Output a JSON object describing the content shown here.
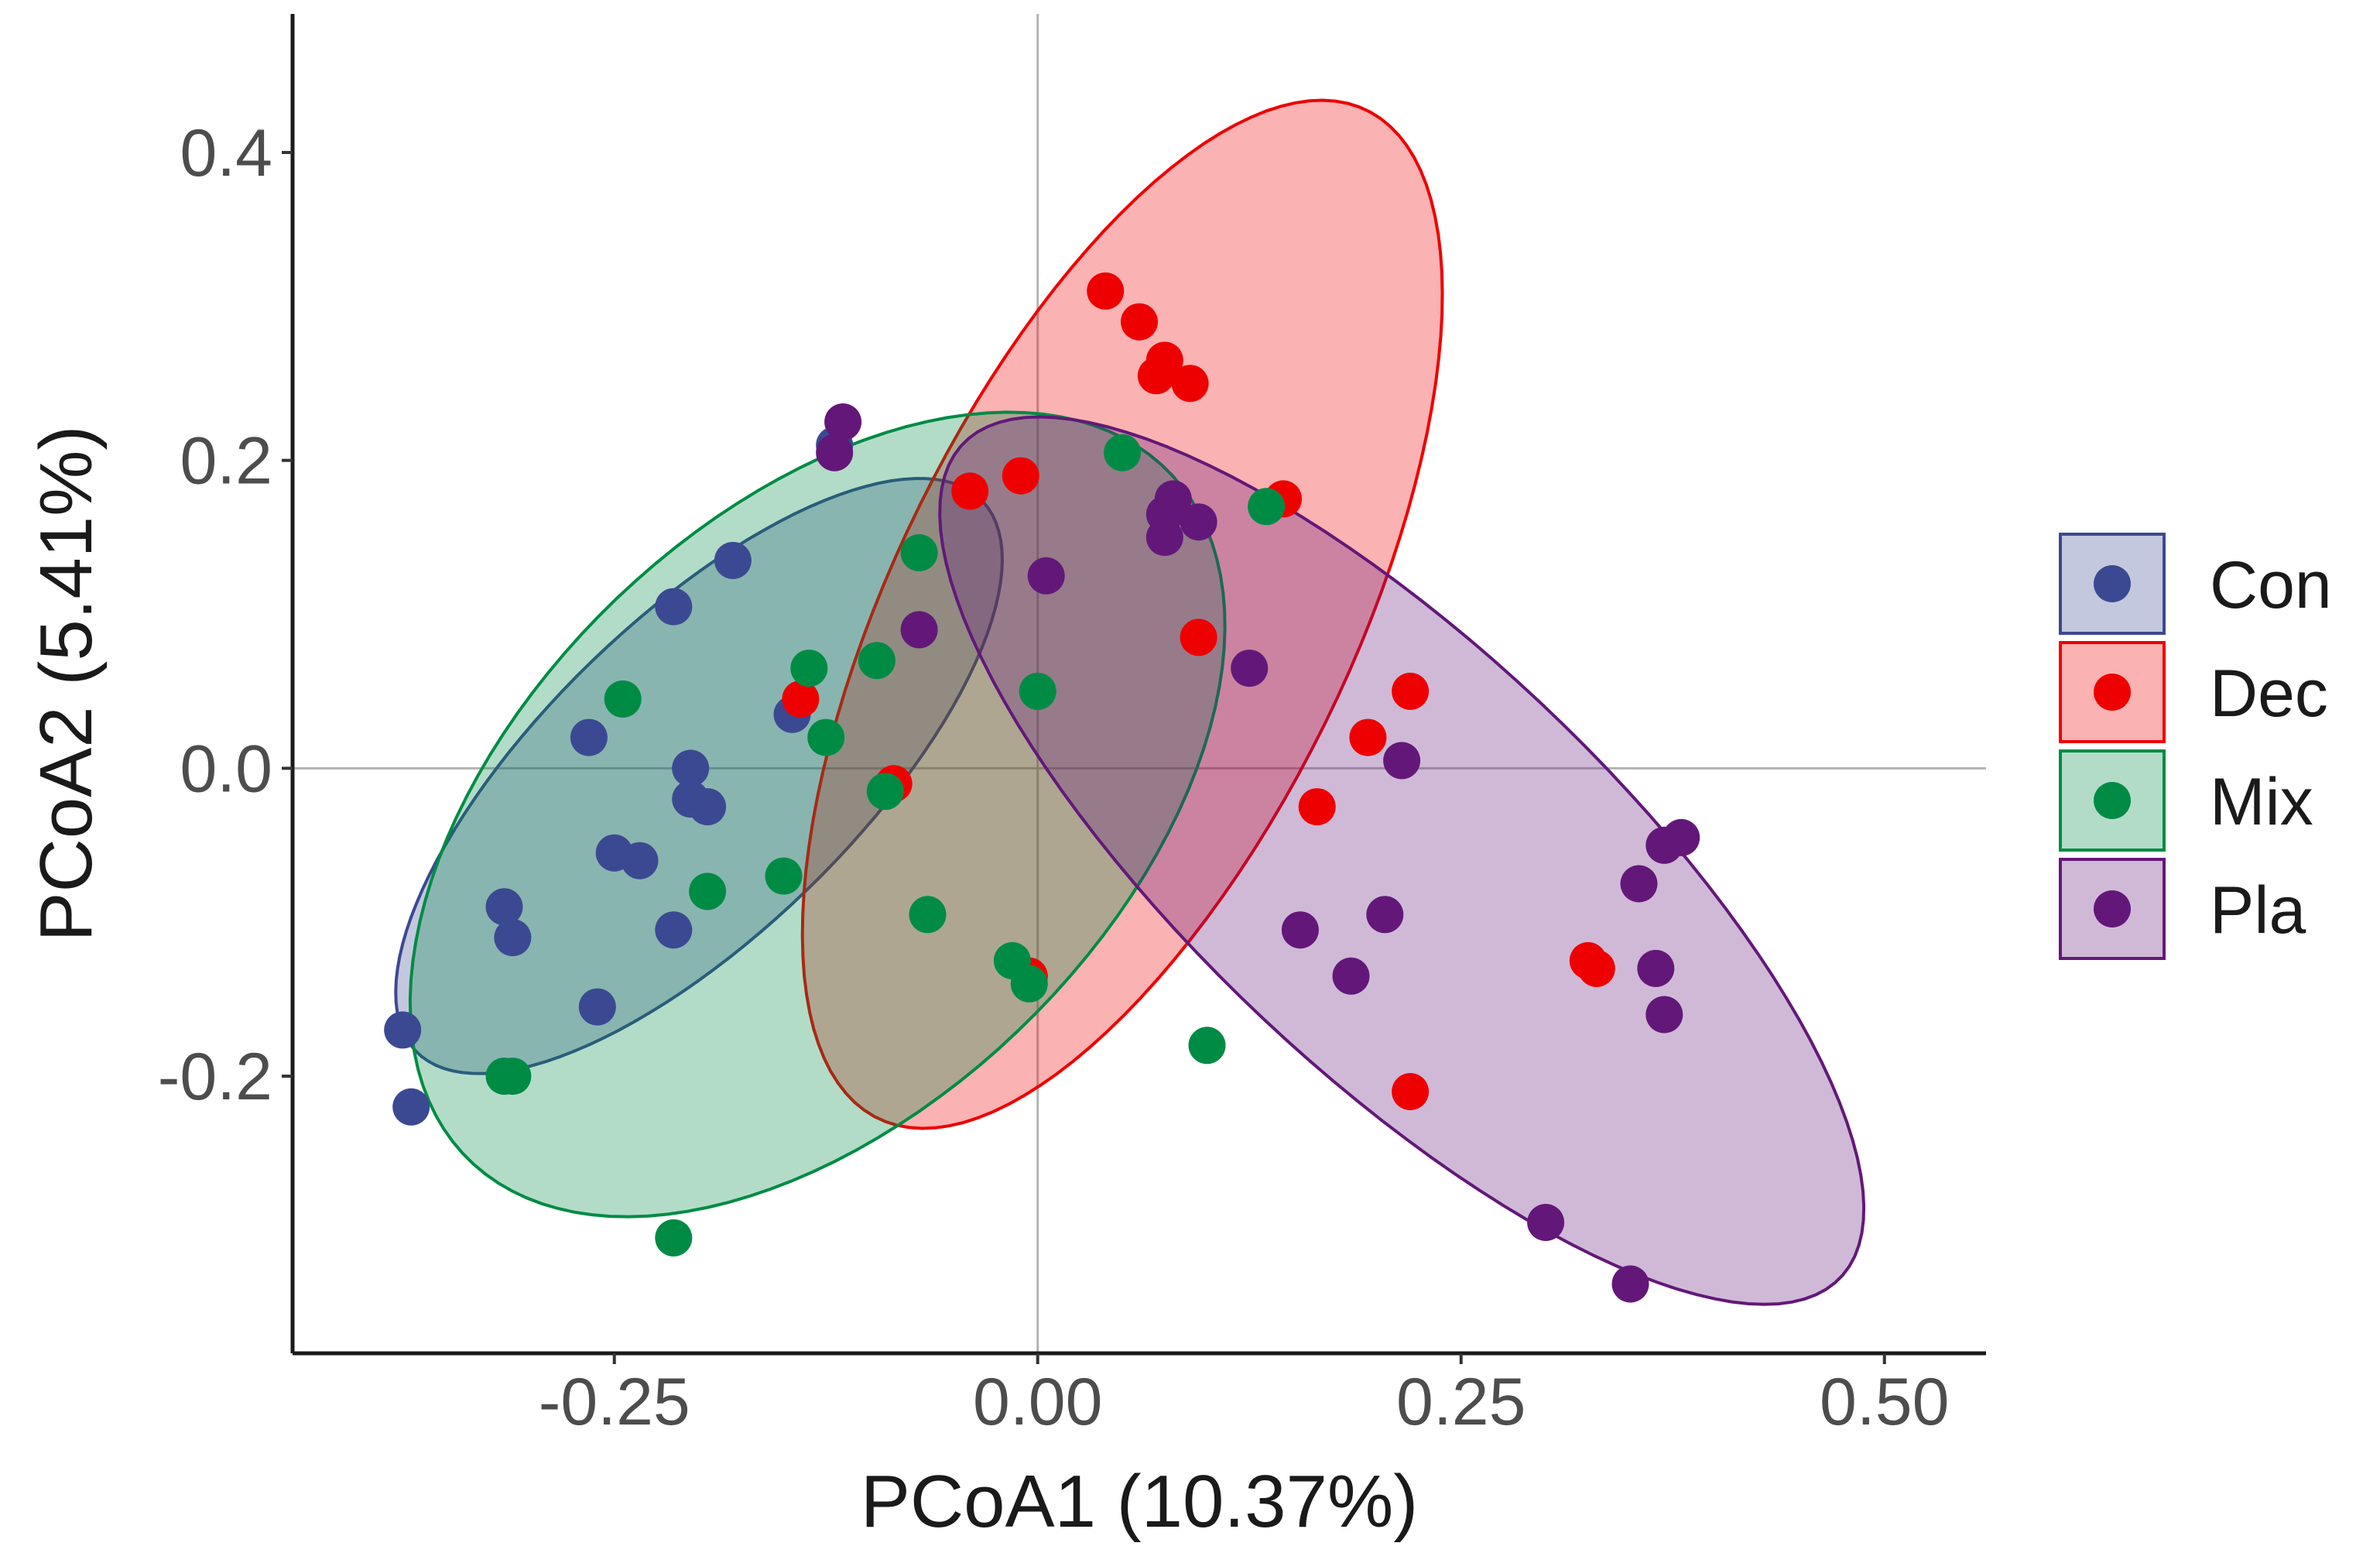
{
  "chart_data": {
    "type": "scatter",
    "title": "",
    "xlabel": "PCoA1 (10.37%)",
    "ylabel": "PCoA2 (5.41%)",
    "xlim": [
      -0.44,
      0.56
    ],
    "ylim": [
      -0.38,
      0.49
    ],
    "x_ticks": [
      -0.25,
      0.0,
      0.25,
      0.5
    ],
    "x_tick_labels": [
      "-0.25",
      "0.00",
      "0.25",
      "0.50"
    ],
    "y_ticks": [
      -0.2,
      0.0,
      0.2,
      0.4
    ],
    "y_tick_labels": [
      "-0.2",
      "0.0",
      "0.2",
      "0.4"
    ],
    "grid": false,
    "reference_lines": {
      "x": 0,
      "y": 0
    },
    "legend_position": "right",
    "series": [
      {
        "name": "Con",
        "color": "#3B4992",
        "points": [
          [
            -0.375,
            -0.17
          ],
          [
            -0.37,
            -0.22
          ],
          [
            -0.315,
            -0.09
          ],
          [
            -0.31,
            -0.11
          ],
          [
            -0.26,
            -0.155
          ],
          [
            -0.265,
            0.02
          ],
          [
            -0.25,
            -0.055
          ],
          [
            -0.235,
            -0.06
          ],
          [
            -0.215,
            0.105
          ],
          [
            -0.215,
            -0.105
          ],
          [
            -0.205,
            0.0
          ],
          [
            -0.205,
            -0.02
          ],
          [
            -0.195,
            -0.025
          ],
          [
            -0.18,
            0.135
          ],
          [
            -0.145,
            0.035
          ],
          [
            -0.12,
            0.21
          ]
        ],
        "ellipse": {
          "cx": -0.2,
          "cy": -0.005,
          "rx": 0.245,
          "ry": 0.097,
          "angle_deg": 48
        }
      },
      {
        "name": "Dec",
        "color": "#EE0000",
        "points": [
          [
            0.04,
            0.31
          ],
          [
            0.06,
            0.29
          ],
          [
            0.075,
            0.265
          ],
          [
            0.07,
            0.255
          ],
          [
            0.09,
            0.25
          ],
          [
            -0.04,
            0.18
          ],
          [
            -0.01,
            0.19
          ],
          [
            0.145,
            0.175
          ],
          [
            0.095,
            0.085
          ],
          [
            -0.14,
            0.045
          ],
          [
            -0.085,
            -0.01
          ],
          [
            0.195,
            0.02
          ],
          [
            0.22,
            0.05
          ],
          [
            0.165,
            -0.025
          ],
          [
            0.325,
            -0.125
          ],
          [
            0.33,
            -0.13
          ],
          [
            0.22,
            -0.21
          ],
          [
            -0.005,
            -0.135
          ]
        ],
        "ellipse": {
          "cx": 0.05,
          "cy": 0.1,
          "rx": 0.358,
          "ry": 0.138,
          "angle_deg": 67
        }
      },
      {
        "name": "Mix",
        "color": "#008B45",
        "points": [
          [
            0.05,
            0.205
          ],
          [
            0.135,
            0.17
          ],
          [
            -0.07,
            0.14
          ],
          [
            -0.095,
            0.07
          ],
          [
            -0.135,
            0.065
          ],
          [
            -0.125,
            0.02
          ],
          [
            0.0,
            0.05
          ],
          [
            -0.09,
            -0.015
          ],
          [
            -0.245,
            0.045
          ],
          [
            -0.15,
            -0.07
          ],
          [
            -0.065,
            -0.095
          ],
          [
            -0.195,
            -0.08
          ],
          [
            -0.015,
            -0.125
          ],
          [
            -0.005,
            -0.14
          ],
          [
            0.1,
            -0.18
          ],
          [
            -0.315,
            -0.2
          ],
          [
            -0.31,
            -0.2
          ],
          [
            -0.215,
            -0.305
          ]
        ],
        "ellipse": {
          "cx": -0.13,
          "cy": -0.03,
          "rx": 0.305,
          "ry": 0.182,
          "angle_deg": 50
        }
      },
      {
        "name": "Pla",
        "color": "#631879",
        "points": [
          [
            -0.115,
            0.225
          ],
          [
            -0.12,
            0.205
          ],
          [
            0.08,
            0.175
          ],
          [
            0.075,
            0.165
          ],
          [
            0.095,
            0.16
          ],
          [
            0.075,
            0.15
          ],
          [
            0.005,
            0.125
          ],
          [
            -0.07,
            0.09
          ],
          [
            0.125,
            0.065
          ],
          [
            0.215,
            0.005
          ],
          [
            0.155,
            -0.105
          ],
          [
            0.205,
            -0.095
          ],
          [
            0.185,
            -0.135
          ],
          [
            0.355,
            -0.075
          ],
          [
            0.37,
            -0.05
          ],
          [
            0.38,
            -0.045
          ],
          [
            0.365,
            -0.13
          ],
          [
            0.37,
            -0.16
          ],
          [
            0.3,
            -0.295
          ],
          [
            0.35,
            -0.335
          ]
        ],
        "ellipse": {
          "cx": 0.215,
          "cy": -0.06,
          "rx": 0.375,
          "ry": 0.13,
          "angle_deg": -47
        }
      }
    ]
  }
}
